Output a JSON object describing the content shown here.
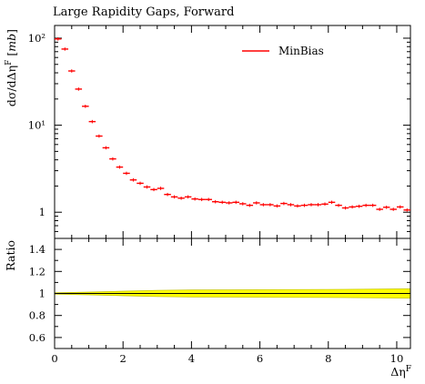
{
  "chart_data": {
    "type": "line",
    "title": "Large Rapidity Gaps, Forward",
    "xlabel": "Δη^F",
    "ylabel": "dσ/dΔη^F [mb]",
    "xlim": [
      0,
      10.4
    ],
    "main_panel": {
      "yscale": "log",
      "ylim": [
        0.5,
        140
      ],
      "y_ticks": [
        1,
        10,
        100
      ],
      "y_tick_labels": [
        "1",
        "10¹",
        "10²"
      ],
      "legend_position": "top-right",
      "series": [
        {
          "name": "MinBias",
          "color": "#ff0000",
          "bin_width": 0.2,
          "x": [
            0.1,
            0.3,
            0.5,
            0.7,
            0.9,
            1.1,
            1.3,
            1.5,
            1.7,
            1.9,
            2.1,
            2.3,
            2.5,
            2.7,
            2.9,
            3.1,
            3.3,
            3.5,
            3.7,
            3.9,
            4.1,
            4.3,
            4.5,
            4.7,
            4.9,
            5.1,
            5.3,
            5.5,
            5.7,
            5.9,
            6.1,
            6.3,
            6.5,
            6.7,
            6.9,
            7.1,
            7.3,
            7.5,
            7.7,
            7.9,
            8.1,
            8.3,
            8.5,
            8.7,
            8.9,
            9.1,
            9.3,
            9.5,
            9.7,
            9.9,
            10.1,
            10.3
          ],
          "y": [
            98,
            75,
            42,
            26,
            16.5,
            11,
            7.5,
            5.5,
            4.1,
            3.3,
            2.8,
            2.35,
            2.15,
            1.95,
            1.82,
            1.88,
            1.6,
            1.5,
            1.45,
            1.5,
            1.42,
            1.4,
            1.4,
            1.32,
            1.3,
            1.28,
            1.3,
            1.25,
            1.2,
            1.28,
            1.22,
            1.22,
            1.18,
            1.26,
            1.22,
            1.18,
            1.2,
            1.22,
            1.22,
            1.24,
            1.3,
            1.2,
            1.12,
            1.15,
            1.17,
            1.2,
            1.2,
            1.08,
            1.14,
            1.08,
            1.15,
            1.06
          ]
        }
      ]
    },
    "ratio_panel": {
      "ylabel": "Ratio",
      "ylim": [
        0.5,
        1.5
      ],
      "y_ticks": [
        0.6,
        0.8,
        1.0,
        1.2,
        1.4
      ],
      "y_tick_labels": [
        "0.6",
        "0.8",
        "1",
        "1.2",
        "1.4"
      ],
      "reference_value": 1.0,
      "band_color": "#ffff00",
      "band_outline_color": "#c8c800",
      "band_halfwidth": [
        [
          0.0,
          0.006
        ],
        [
          1.0,
          0.012
        ],
        [
          2.0,
          0.02
        ],
        [
          3.0,
          0.028
        ],
        [
          4.0,
          0.032
        ],
        [
          6.0,
          0.034
        ],
        [
          8.0,
          0.036
        ],
        [
          10.4,
          0.042
        ]
      ]
    },
    "x_ticks": [
      0,
      2,
      4,
      6,
      8,
      10
    ],
    "x_tick_labels": [
      "0",
      "2",
      "4",
      "6",
      "8",
      "10"
    ],
    "grid": false
  }
}
